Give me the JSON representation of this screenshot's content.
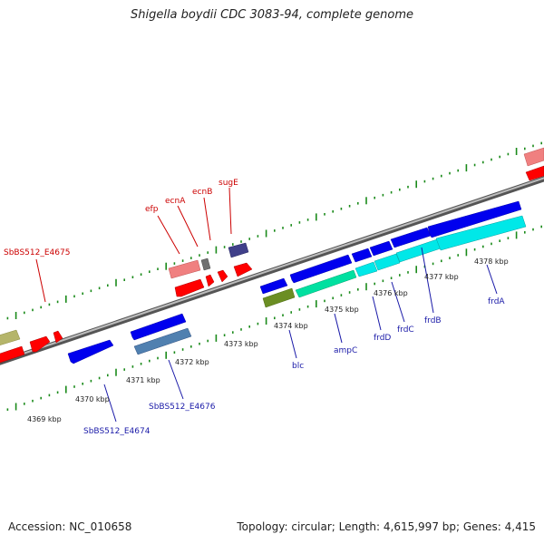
{
  "title": "Shigella boydii CDC 3083-94, complete genome",
  "footer": {
    "accession": "Accession: NC_010658",
    "summary": "Topology: circular; Length: 4,615,997 bp; Genes: 4,415"
  },
  "colors": {
    "forward_gene": "#ff0000",
    "reverse_gene": "#0000ff",
    "backbone": "#888888",
    "tick": "#1a8a1a",
    "label_red": "#cc0000",
    "label_blue": "#1a1aa8"
  },
  "kbp_labels": [
    "4369 kbp",
    "4370 kbp",
    "4371 kbp",
    "4372 kbp",
    "4373 kbp",
    "4374 kbp",
    "4375 kbp",
    "4376 kbp",
    "4377 kbp",
    "4378 kbp"
  ],
  "top_labels": [
    "SbBS512_E4675",
    "efp",
    "ecnA",
    "ecnB",
    "sugE"
  ],
  "bottom_labels": [
    "SbBS512_E4674",
    "SbBS512_E4676",
    "blc",
    "ampC",
    "frdD",
    "frdC",
    "frdB",
    "frdA"
  ]
}
